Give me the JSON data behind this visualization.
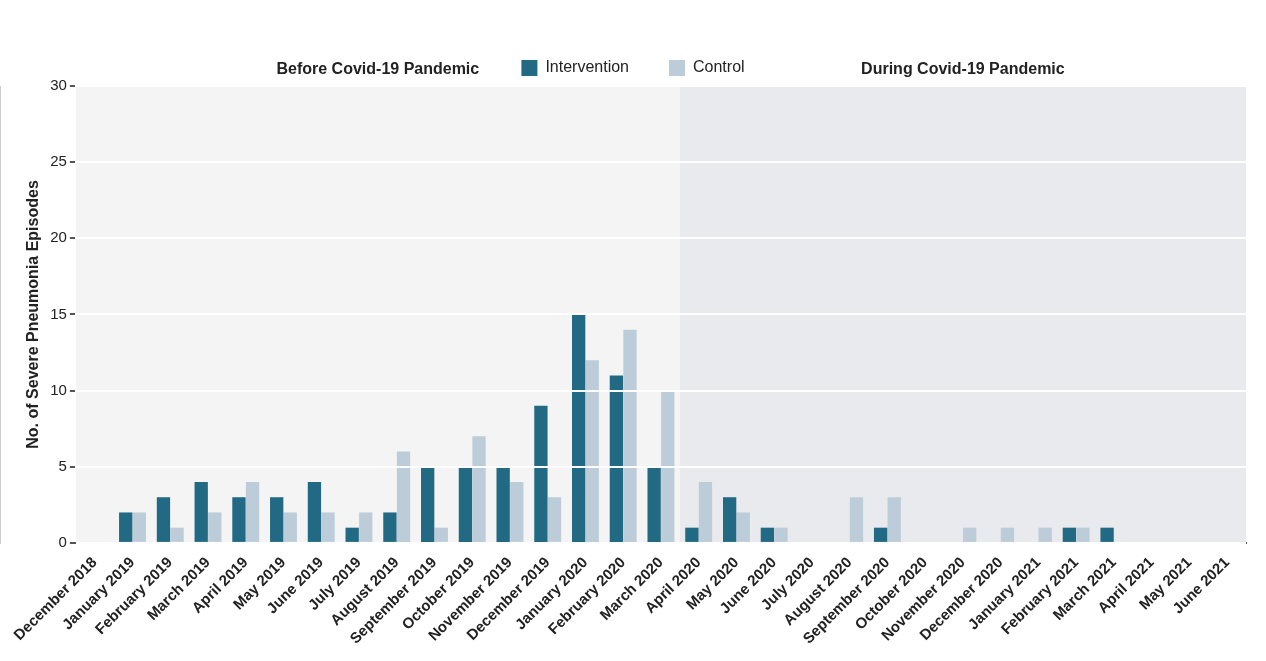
{
  "chart_data": {
    "type": "bar",
    "xlabel": null,
    "ylabel": "No. of Severe Pneumonia Episodes",
    "categories": [
      "December 2018",
      "January 2019",
      "February 2019",
      "March 2019",
      "April 2019",
      "May 2019",
      "June 2019",
      "July 2019",
      "August 2019",
      "September 2019",
      "October 2019",
      "November 2019",
      "December 2019",
      "January 2020",
      "February 2020",
      "March 2020",
      "April 2020",
      "May 2020",
      "June 2020",
      "July 2020",
      "August 2020",
      "September 2020",
      "October 2020",
      "November 2020",
      "December 2020",
      "January 2021",
      "February 2021",
      "March 2021",
      "April 2021",
      "May 2021",
      "June 2021"
    ],
    "series": [
      {
        "name": "Intervention",
        "color": "#226a84",
        "values": [
          0,
          2,
          3,
          4,
          3,
          3,
          4,
          1,
          2,
          5,
          5,
          5,
          9,
          15,
          11,
          5,
          1,
          3,
          1,
          0,
          0,
          1,
          0,
          0,
          0,
          0,
          1,
          1,
          0,
          0,
          0
        ]
      },
      {
        "name": "Control",
        "color": "#bccdd9",
        "values": [
          0,
          2,
          1,
          2,
          4,
          2,
          2,
          2,
          6,
          1,
          7,
          4,
          3,
          12,
          14,
          10,
          4,
          2,
          1,
          0,
          3,
          3,
          0,
          1,
          1,
          1,
          1,
          0,
          0,
          0,
          0
        ]
      }
    ],
    "ylim": [
      0,
      30
    ],
    "yticks": [
      0,
      5,
      10,
      15,
      20,
      25,
      30
    ],
    "grid": "y",
    "legend": "top",
    "bands": [
      {
        "axis": "x",
        "from": "December 2018",
        "to": "March 2020",
        "label": "Before Covid-19 Pandemic",
        "color": "#f4f4f4"
      },
      {
        "axis": "x",
        "from": "April 2020",
        "to": "June 2021",
        "label": "During Covid-19 Pandemic",
        "color": "#e9eaed"
      }
    ]
  }
}
